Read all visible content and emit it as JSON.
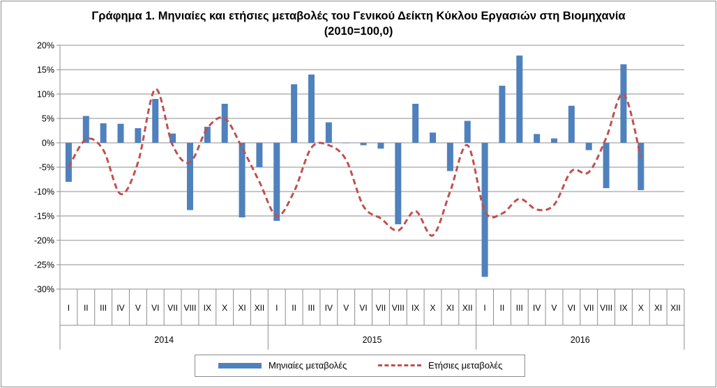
{
  "chart_data": {
    "type": "bar",
    "title_line1": "Γράφημα 1. Μηνιαίες και ετήσιες μεταβολές του Γενικού Δείκτη Κύκλου Εργασιών στη Βιομηχανία",
    "title_line2": "(2010=100,0)",
    "ylim": [
      -30,
      20
    ],
    "yticks": [
      20,
      15,
      10,
      5,
      0,
      -5,
      -10,
      -15,
      -20,
      -25,
      -30
    ],
    "ytick_labels": [
      "20%",
      "15%",
      "10%",
      "5%",
      "0%",
      "-5%",
      "-10%",
      "-15%",
      "-20%",
      "-25%",
      "-30%"
    ],
    "grid": true,
    "legend_position": "bottom",
    "month_labels": [
      "I",
      "II",
      "III",
      "IV",
      "V",
      "VI",
      "VII",
      "VIII",
      "IX",
      "X",
      "XI",
      "XII"
    ],
    "years": [
      "2014",
      "2015",
      "2016"
    ],
    "colors": {
      "bars": "#4f81bd",
      "line": "#c0504d"
    },
    "series": [
      {
        "name": "Μηνιαίες μεταβολές",
        "type": "bar",
        "values": [
          -8.0,
          5.5,
          4.0,
          3.9,
          3.0,
          9.0,
          1.9,
          -13.8,
          3.3,
          8.0,
          -15.3,
          -5.0,
          -16.0,
          12.0,
          14.0,
          4.2,
          0.0,
          -0.5,
          -1.2,
          -16.7,
          8.0,
          2.1,
          -5.8,
          4.5,
          -27.5,
          11.7,
          17.9,
          1.8,
          0.9,
          7.6,
          -1.5,
          -9.3,
          16.1,
          -9.7,
          null,
          null
        ]
      },
      {
        "name": "Ετήσιες μεταβολές",
        "type": "line",
        "values": [
          -5.0,
          0.7,
          -1.5,
          -10.5,
          -4.0,
          11.0,
          -0.5,
          -4.0,
          3.0,
          5.0,
          -1.0,
          -8.0,
          -15.0,
          -10.0,
          -1.0,
          -0.5,
          -3.5,
          -13.0,
          -15.5,
          -18.0,
          -14.0,
          -19.0,
          -10.0,
          -0.5,
          -14.0,
          -14.5,
          -11.5,
          -13.7,
          -12.7,
          -5.8,
          -6.0,
          1.0,
          10.0,
          -3.0,
          null,
          null
        ]
      }
    ]
  }
}
